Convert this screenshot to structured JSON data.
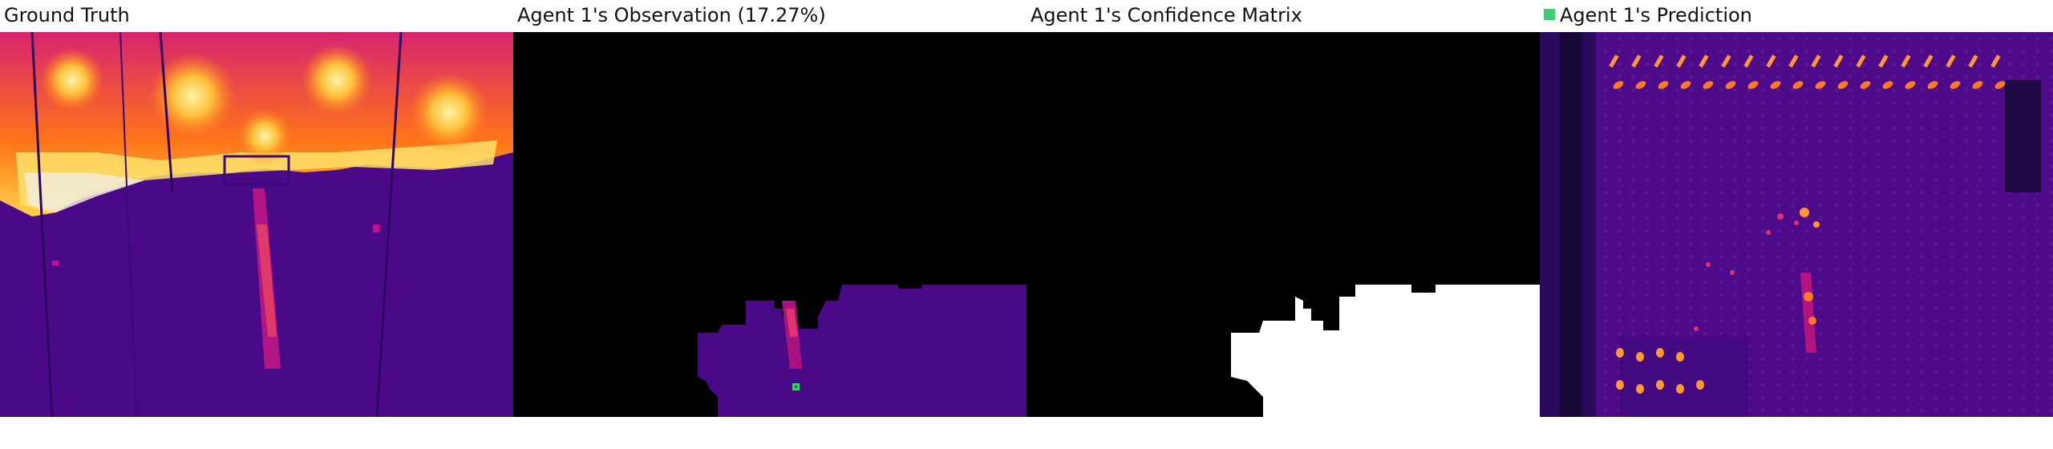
{
  "panels": [
    {
      "title": "Ground Truth"
    },
    {
      "title": "Agent 1's Observation (17.27%)"
    },
    {
      "title": "Agent 1's Confidence Matrix"
    },
    {
      "title": "Agent 1's Prediction"
    }
  ],
  "colors": {
    "background_dark": "#000000",
    "confidence_white": "#ffffff",
    "agent_marker_green": "#3bd16f",
    "thermal_base_purple": "#4b0a86",
    "thermal_mid_magenta": "#c0128e",
    "thermal_hot_orange": "#ff7d15",
    "thermal_peak_yellow": "#ffe45c"
  },
  "icons": {
    "agent_marker": "green-square-icon",
    "legend_marker": "green-square-icon"
  }
}
